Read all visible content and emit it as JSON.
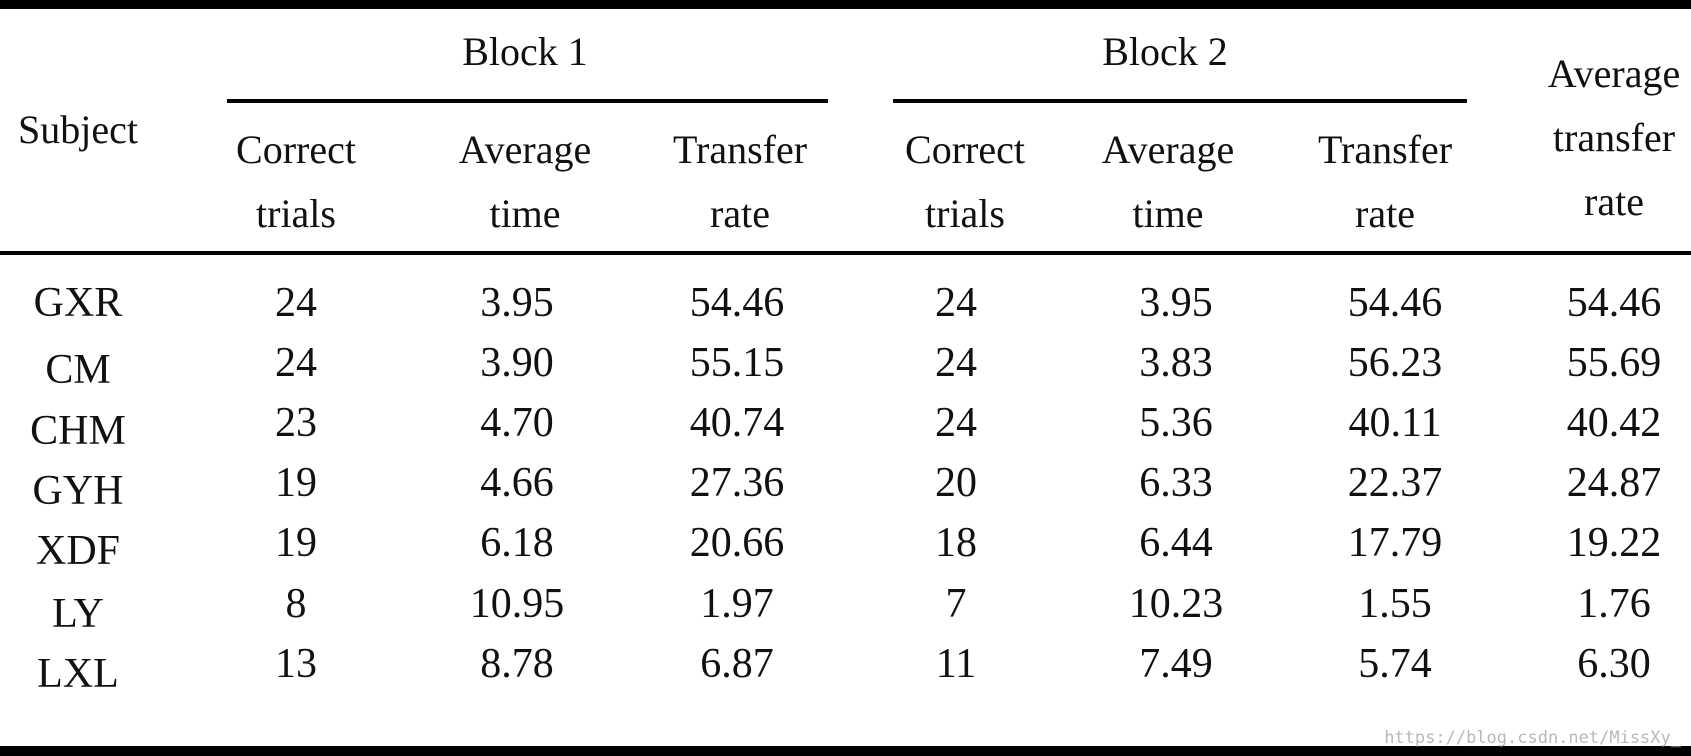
{
  "table": {
    "group_headers": [
      "Block 1",
      "Block 2"
    ],
    "subject_header": "Subject",
    "block_columns": [
      [
        "Correct",
        "trials"
      ],
      [
        "Average",
        "time"
      ],
      [
        "Transfer",
        "rate"
      ]
    ],
    "last_column": [
      "Average",
      "transfer",
      "rate"
    ],
    "rows": [
      [
        "GXR",
        "24",
        "3.95",
        "54.46",
        "24",
        "3.95",
        "54.46",
        "54.46"
      ],
      [
        "CM",
        "24",
        "3.90",
        "55.15",
        "24",
        "3.83",
        "56.23",
        "55.69"
      ],
      [
        "CHM",
        "23",
        "4.70",
        "40.74",
        "24",
        "5.36",
        "40.11",
        "40.42"
      ],
      [
        "GYH",
        "19",
        "4.66",
        "27.36",
        "20",
        "6.33",
        "22.37",
        "24.87"
      ],
      [
        "XDF",
        "19",
        "6.18",
        "20.66",
        "18",
        "6.44",
        "17.79",
        "19.22"
      ],
      [
        "LY",
        "8",
        "10.95",
        "1.97",
        "7",
        "10.23",
        "1.55",
        "1.76"
      ],
      [
        "LXL",
        "13",
        "8.78",
        "6.87",
        "11",
        "7.49",
        "5.74",
        "6.30"
      ]
    ]
  },
  "watermark": "https://blog.csdn.net/MissXy_"
}
